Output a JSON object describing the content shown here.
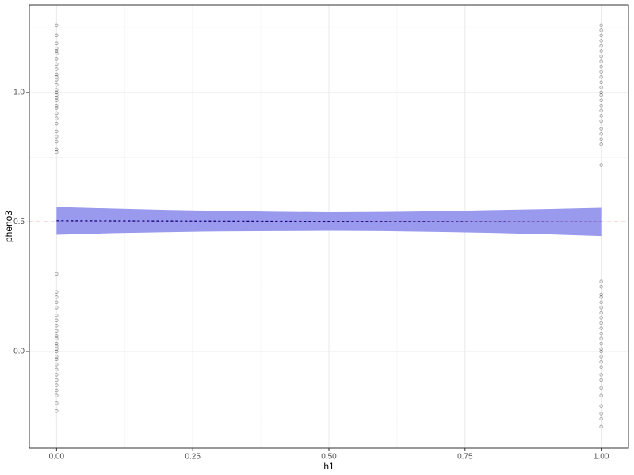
{
  "chart_data": {
    "type": "scatter",
    "x_label": "h1",
    "y_label": "pheno3",
    "xlim": [
      -0.05,
      1.05
    ],
    "ylim": [
      -0.373,
      1.339
    ],
    "xticks": [
      {
        "value": 0,
        "label": "0.00"
      },
      {
        "value": 0.25,
        "label": "0.25"
      },
      {
        "value": 0.5,
        "label": "0.50"
      },
      {
        "value": 0.75,
        "label": "0.75"
      },
      {
        "value": 1,
        "label": "1.00"
      }
    ],
    "yticks": [
      {
        "value": 0,
        "label": "0.0"
      },
      {
        "value": 0.5,
        "label": "0.5"
      },
      {
        "value": 1,
        "label": "1.0"
      }
    ],
    "xminor": [
      0.125,
      0.375,
      0.625,
      0.875
    ],
    "yminor": [
      -0.25,
      0.25,
      0.75,
      1.25
    ],
    "grid": true,
    "point_color": "#000000",
    "groups": [
      {
        "x": 0,
        "values": [
          1.26,
          1.22,
          1.19,
          1.17,
          1.16,
          1.15,
          1.13,
          1.11,
          1.09,
          1.07,
          1.06,
          1.05,
          1.03,
          1.01,
          1.0,
          0.99,
          0.98,
          0.97,
          0.95,
          0.94,
          0.92,
          0.9,
          0.88,
          0.85,
          0.83,
          0.81,
          0.78,
          0.77
        ]
      },
      {
        "x": 0,
        "values": [
          0.3,
          0.23,
          0.21,
          0.19,
          0.17,
          0.14,
          0.12,
          0.1,
          0.08,
          0.06,
          0.05,
          0.03,
          0.02,
          0.01,
          0.0,
          -0.02,
          -0.03,
          -0.05,
          -0.07,
          -0.09,
          -0.11,
          -0.13,
          -0.15,
          -0.17,
          -0.2,
          -0.23
        ]
      },
      {
        "x": 1,
        "values": [
          1.26,
          1.24,
          1.22,
          1.2,
          1.18,
          1.16,
          1.14,
          1.12,
          1.1,
          1.08,
          1.06,
          1.04,
          1.02,
          1.0,
          0.99,
          0.97,
          0.95,
          0.93,
          0.91,
          0.89,
          0.86,
          0.84,
          0.82,
          0.8,
          0.72
        ]
      },
      {
        "x": 1,
        "values": [
          0.27,
          0.25,
          0.22,
          0.21,
          0.19,
          0.17,
          0.15,
          0.13,
          0.11,
          0.09,
          0.07,
          0.05,
          0.03,
          0.01,
          0.0,
          -0.02,
          -0.04,
          -0.06,
          -0.09,
          -0.11,
          -0.14,
          -0.17,
          -0.21,
          -0.24,
          -0.26,
          -0.29
        ]
      }
    ],
    "ribbon": {
      "color": "#9999ee",
      "x": [
        0,
        0.1,
        0.2,
        0.3,
        0.4,
        0.5,
        0.6,
        0.7,
        0.8,
        0.9,
        1
      ],
      "upper": [
        0.558,
        0.552,
        0.547,
        0.543,
        0.54,
        0.538,
        0.539,
        0.542,
        0.546,
        0.55,
        0.555
      ],
      "lower": [
        0.451,
        0.457,
        0.461,
        0.464,
        0.465,
        0.466,
        0.465,
        0.462,
        0.458,
        0.453,
        0.446
      ]
    },
    "fit": {
      "color": "#000080",
      "x": [
        0,
        1
      ],
      "values": [
        0.505,
        0.5
      ]
    },
    "hline": {
      "color": "#cc0000",
      "value": 0.5
    }
  }
}
